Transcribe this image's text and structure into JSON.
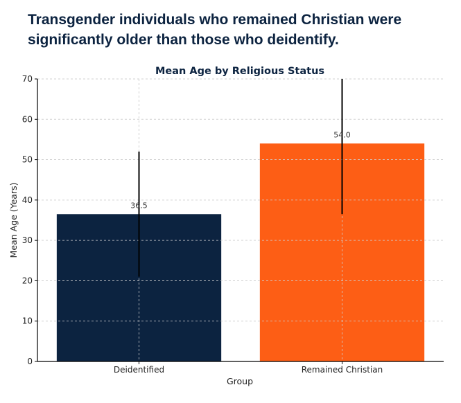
{
  "headline": "Transgender individuals who remained Christian were significantly older than those who deidentify.",
  "chart_data": {
    "type": "bar",
    "title": "Mean Age by Religious Status",
    "xlabel": "Group",
    "ylabel": "Mean Age (Years)",
    "ylim": [
      0,
      70
    ],
    "yticks": [
      0,
      10,
      20,
      30,
      40,
      50,
      60,
      70
    ],
    "grid": true,
    "categories": [
      "Deidentified",
      "Remained Christian"
    ],
    "values": [
      36.5,
      54.0
    ],
    "value_labels": [
      "36.5",
      "54.0"
    ],
    "error_bars": [
      [
        21,
        52
      ],
      [
        36.5,
        70
      ]
    ],
    "colors": [
      "#0c2340",
      "#fd5e15"
    ]
  }
}
